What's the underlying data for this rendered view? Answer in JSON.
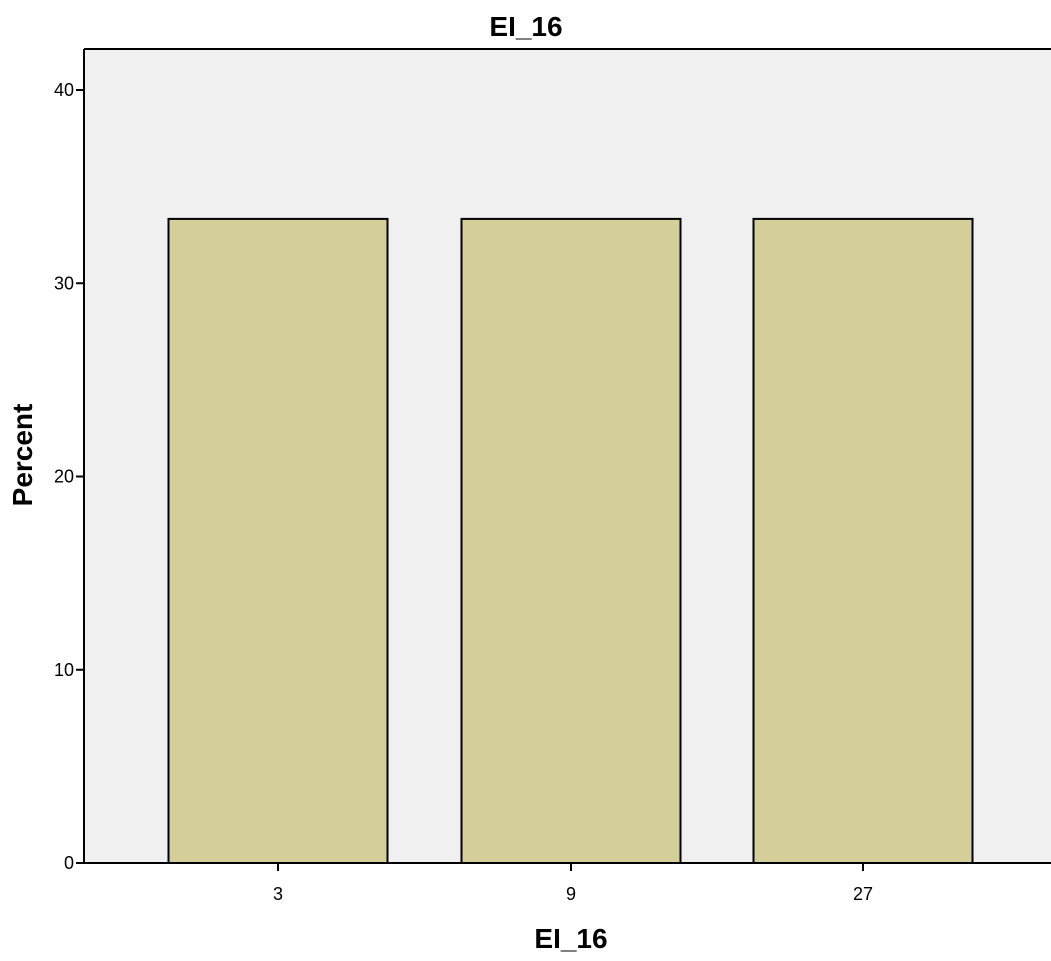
{
  "chart_data": {
    "type": "bar",
    "title": "EI_16",
    "xlabel": "EI_16",
    "ylabel": "Percent",
    "categories": [
      "3",
      "9",
      "27"
    ],
    "values": [
      33.33,
      33.33,
      33.33
    ],
    "ylim": [
      0,
      42
    ],
    "yticks": [
      0,
      10,
      20,
      30,
      40
    ],
    "grid": false,
    "legend": "none"
  },
  "colors": {
    "bar_fill": "#d4ce98",
    "bar_stroke": "#000000",
    "plot_background": "#f0f0f0",
    "axis": "#000000"
  }
}
